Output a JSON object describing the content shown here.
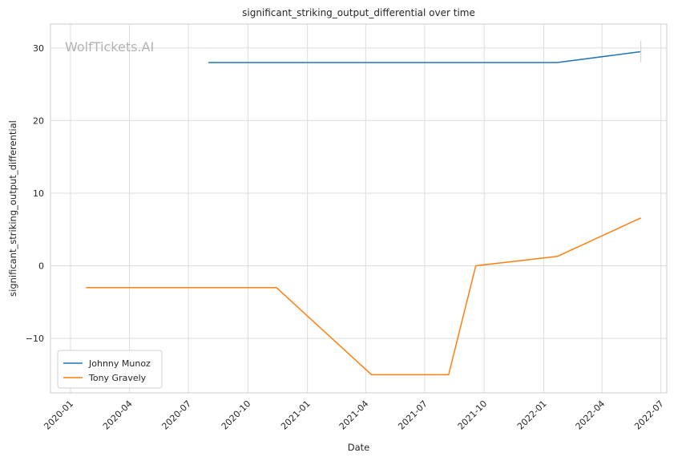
{
  "chart_data": {
    "type": "line",
    "title": "significant_striking_output_differential over time",
    "xlabel": "Date",
    "ylabel": "significant_striking_output_differential",
    "watermark": "WolfTickets.AI",
    "x_range": [
      "2019-12-01",
      "2022-07-10"
    ],
    "ylim": [
      -17.5,
      33.3
    ],
    "y_ticks": [
      30,
      20,
      10,
      0,
      -10
    ],
    "y_tick_labels": [
      "30",
      "20",
      "10",
      "0",
      "−10"
    ],
    "x_ticks": [
      "2020-01-01",
      "2020-04-01",
      "2020-07-01",
      "2020-10-01",
      "2021-01-01",
      "2021-04-01",
      "2021-07-01",
      "2021-10-01",
      "2022-01-01",
      "2022-04-01",
      "2022-07-01"
    ],
    "x_tick_labels": [
      "2020-01",
      "2020-04",
      "2020-07",
      "2020-10",
      "2021-01",
      "2021-04",
      "2021-07",
      "2021-10",
      "2022-01",
      "2022-04",
      "2022-07"
    ],
    "grid": true,
    "legend_position": "lower-left",
    "series": [
      {
        "name": "Johnny Munoz",
        "color": "#1f77b4",
        "points": [
          {
            "x": "2020-08-01",
            "y": 28.0
          },
          {
            "x": "2022-01-22",
            "y": 28.0
          },
          {
            "x": "2022-05-31",
            "y": 29.5
          }
        ],
        "error_bar": {
          "x": "2022-05-31",
          "low": 28.0,
          "high": 31.0
        }
      },
      {
        "name": "Tony Gravely",
        "color": "#ff7f0e",
        "points": [
          {
            "x": "2020-01-25",
            "y": -3.0
          },
          {
            "x": "2020-11-14",
            "y": -3.0
          },
          {
            "x": "2021-04-10",
            "y": -15.0
          },
          {
            "x": "2021-08-07",
            "y": -15.0
          },
          {
            "x": "2021-09-18",
            "y": 0.0
          },
          {
            "x": "2022-01-22",
            "y": 1.3
          },
          {
            "x": "2022-05-31",
            "y": 6.6
          }
        ]
      }
    ]
  }
}
